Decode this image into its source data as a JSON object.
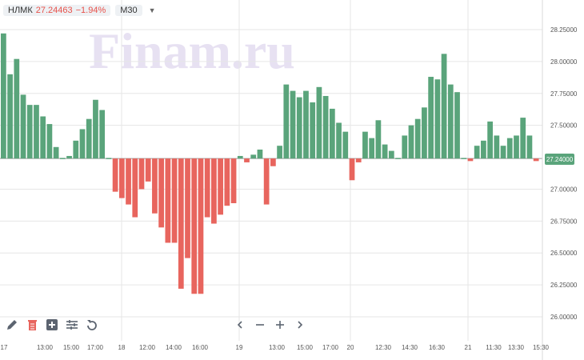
{
  "header": {
    "ticker": "НЛМК",
    "price": "27.24463",
    "change": "−1.94%",
    "timeframe": "M30"
  },
  "watermark": "Finam.ru",
  "price_tag": "27.24000",
  "colors": {
    "up": "#5aa47b",
    "down": "#e8655e",
    "grid": "#e6e6e6"
  },
  "toolbar": {
    "icons": [
      "pencil-icon",
      "trash-icon",
      "add-indicator-icon",
      "settings-sliders-icon",
      "undo-icon"
    ]
  },
  "navigation": {
    "icons": [
      "scroll-left-icon",
      "zoom-out-icon",
      "zoom-in-icon",
      "scroll-right-icon"
    ]
  },
  "chart_data": {
    "type": "bar",
    "baseline": 27.24,
    "ylim": [
      25.95,
      28.35
    ],
    "y_ticks": [
      "28.25000",
      "28.00000",
      "27.75000",
      "27.50000",
      "27.00000",
      "26.75000",
      "26.50000",
      "26.25000",
      "26.00000"
    ],
    "x_labels": [
      "17",
      "13:00",
      "15:00",
      "17:00",
      "18",
      "12:00",
      "14:00",
      "16:00",
      "19",
      "13:00",
      "15:00",
      "17:00",
      "20",
      "12:30",
      "14:30",
      "16:30",
      "21",
      "11:30",
      "13:30",
      "15:30"
    ],
    "values": [
      28.22,
      27.9,
      28.02,
      27.74,
      27.66,
      27.66,
      27.57,
      27.51,
      27.33,
      27.24,
      27.26,
      27.38,
      27.47,
      27.55,
      27.7,
      27.62,
      27.24,
      26.98,
      26.93,
      26.88,
      26.78,
      27.0,
      27.06,
      26.81,
      26.7,
      26.58,
      26.58,
      26.22,
      26.46,
      26.18,
      26.18,
      26.78,
      26.73,
      26.8,
      26.87,
      26.89,
      27.26,
      27.21,
      27.27,
      27.31,
      26.88,
      27.18,
      27.34,
      27.82,
      27.77,
      27.72,
      27.77,
      27.68,
      27.8,
      27.73,
      27.63,
      27.52,
      27.45,
      27.07,
      27.21,
      27.45,
      27.4,
      27.54,
      27.35,
      27.3,
      27.24,
      27.42,
      27.5,
      27.55,
      27.64,
      27.88,
      27.86,
      28.06,
      27.82,
      27.76,
      27.24,
      27.22,
      27.34,
      27.38,
      27.53,
      27.42,
      27.34,
      27.4,
      27.42,
      27.56,
      27.42,
      27.22
    ]
  }
}
